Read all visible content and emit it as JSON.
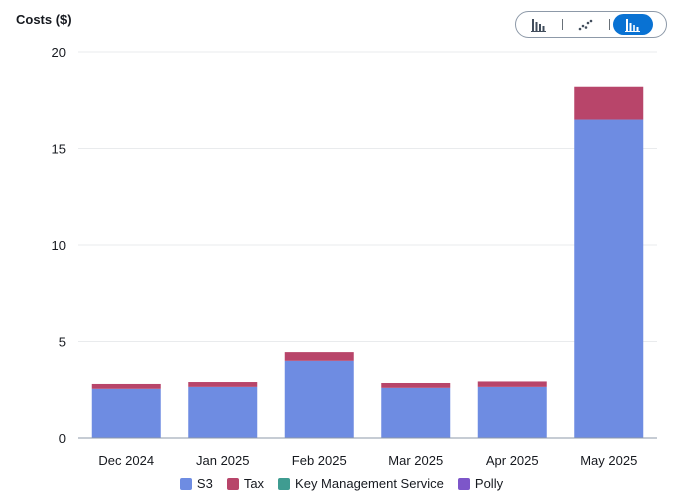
{
  "chart_data": {
    "type": "bar",
    "stacked": true,
    "ylabel": "Costs ($)",
    "xlabel": "",
    "categories": [
      "Dec 2024",
      "Jan 2025",
      "Feb 2025",
      "Mar 2025",
      "Apr 2025",
      "May 2025"
    ],
    "series": [
      {
        "name": "S3",
        "color": "#6e8ce2",
        "values": [
          2.55,
          2.65,
          4.0,
          2.6,
          2.65,
          16.5
        ]
      },
      {
        "name": "Tax",
        "color": "#b8456a",
        "values": [
          0.25,
          0.25,
          0.45,
          0.25,
          0.28,
          1.7
        ]
      },
      {
        "name": "Key Management Service",
        "color": "#3f9c91",
        "values": [
          0,
          0,
          0,
          0,
          0,
          0
        ]
      },
      {
        "name": "Polly",
        "color": "#7d56c9",
        "values": [
          0,
          0,
          0,
          0,
          0,
          0
        ]
      }
    ],
    "ylim": [
      0,
      20
    ],
    "yticks": [
      "0",
      "5",
      "10",
      "15",
      "20"
    ],
    "grid": true,
    "legend_position": "bottom-center"
  },
  "toolbar": {
    "buttons": [
      {
        "icon": "bar-chart-icon",
        "active": false
      },
      {
        "icon": "scatter-chart-icon",
        "active": false
      },
      {
        "icon": "stacked-bar-chart-icon",
        "active": true
      }
    ]
  },
  "colors": {
    "accent": "#0972d3",
    "grid": "#e9ebed",
    "axis": "#8d99a8"
  }
}
